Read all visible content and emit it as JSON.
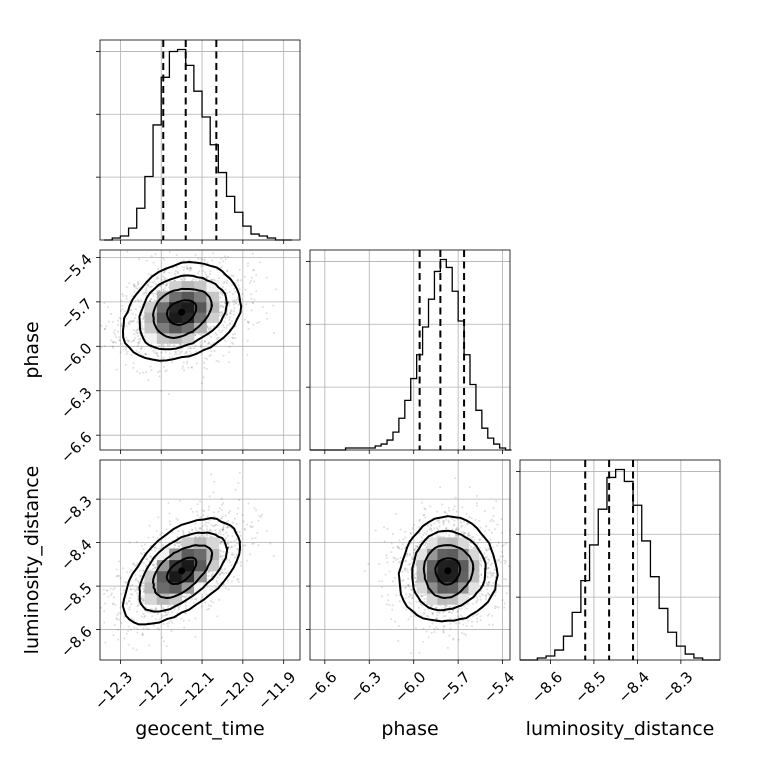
{
  "chart_data": {
    "type": "corner",
    "parameters": [
      "geocent_time",
      "phase",
      "luminosity_distance"
    ],
    "axis_labels": {
      "geocent_time": "geocent_time",
      "phase": "phase",
      "luminosity_distance": "luminosity_distance"
    },
    "ranges": {
      "geocent_time": [
        -12.35,
        -11.86
      ],
      "phase": [
        -6.7,
        -5.35
      ],
      "luminosity_distance": [
        -8.67,
        -8.21
      ]
    },
    "ticks": {
      "geocent_time": [
        -12.3,
        -12.2,
        -12.1,
        -12.0,
        -11.9
      ],
      "phase": [
        -6.6,
        -6.3,
        -6.0,
        -5.7,
        -5.4
      ],
      "luminosity_distance": [
        -8.6,
        -8.5,
        -8.4,
        -8.3
      ]
    },
    "tick_labels": {
      "geocent_time": [
        "−12.3",
        "−12.2",
        "−12.1",
        "−12.0",
        "−11.9"
      ],
      "phase": [
        "−6.6",
        "−6.3",
        "−6.0",
        "−5.7",
        "−5.4"
      ],
      "luminosity_distance": [
        "−8.6",
        "−8.5",
        "−8.4",
        "−8.3"
      ]
    },
    "quantiles": {
      "geocent_time": [
        -12.195,
        -12.14,
        -12.065
      ],
      "phase": [
        -5.96,
        -5.82,
        -5.66
      ],
      "luminosity_distance": [
        -8.52,
        -8.465,
        -8.41
      ]
    },
    "marginals": {
      "geocent_time": {
        "centers": [
          -12.33,
          -12.31,
          -12.29,
          -12.27,
          -12.25,
          -12.23,
          -12.21,
          -12.19,
          -12.17,
          -12.15,
          -12.13,
          -12.11,
          -12.09,
          -12.07,
          -12.05,
          -12.03,
          -12.01,
          -11.99,
          -11.97,
          -11.95,
          -11.93,
          -11.91,
          -11.89
        ],
        "values": [
          0,
          1,
          2,
          6,
          16,
          32,
          58,
          82,
          95,
          96,
          88,
          75,
          62,
          48,
          34,
          22,
          14,
          7,
          3,
          2,
          1,
          0,
          0
        ]
      },
      "phase": {
        "centers": [
          -6.68,
          -6.64,
          -6.6,
          -6.56,
          -6.52,
          -6.48,
          -6.44,
          -6.4,
          -6.36,
          -6.32,
          -6.28,
          -6.24,
          -6.2,
          -6.16,
          -6.12,
          -6.08,
          -6.04,
          -6.0,
          -5.96,
          -5.92,
          -5.88,
          -5.84,
          -5.8,
          -5.76,
          -5.72,
          -5.68,
          -5.64,
          -5.6,
          -5.56,
          -5.52,
          -5.48,
          -5.44,
          -5.4,
          -5.36
        ],
        "values": [
          0,
          0,
          0,
          0,
          0,
          0,
          1,
          1,
          1,
          1,
          1,
          2,
          3,
          5,
          9,
          16,
          25,
          36,
          48,
          62,
          76,
          90,
          96,
          92,
          80,
          65,
          48,
          33,
          20,
          11,
          6,
          3,
          1,
          0
        ]
      },
      "luminosity_distance": {
        "centers": [
          -8.66,
          -8.64,
          -8.62,
          -8.6,
          -8.58,
          -8.56,
          -8.54,
          -8.52,
          -8.5,
          -8.48,
          -8.46,
          -8.44,
          -8.42,
          -8.4,
          -8.38,
          -8.36,
          -8.34,
          -8.32,
          -8.3,
          -8.28,
          -8.26,
          -8.24,
          -8.22
        ],
        "values": [
          0,
          0,
          1,
          2,
          5,
          12,
          24,
          40,
          58,
          76,
          92,
          96,
          90,
          78,
          60,
          42,
          26,
          14,
          7,
          3,
          1,
          0,
          0
        ]
      }
    },
    "pair_peaks": [
      {
        "x": "geocent_time",
        "y": "phase",
        "peak": [
          -12.15,
          -5.77
        ]
      },
      {
        "x": "geocent_time",
        "y": "luminosity_distance",
        "peak": [
          -12.15,
          -8.465
        ]
      },
      {
        "x": "phase",
        "y": "luminosity_distance",
        "peak": [
          -5.77,
          -8.465
        ]
      }
    ],
    "dashed_quantile_lines": true,
    "grid": true,
    "legend": "none",
    "title": ""
  }
}
